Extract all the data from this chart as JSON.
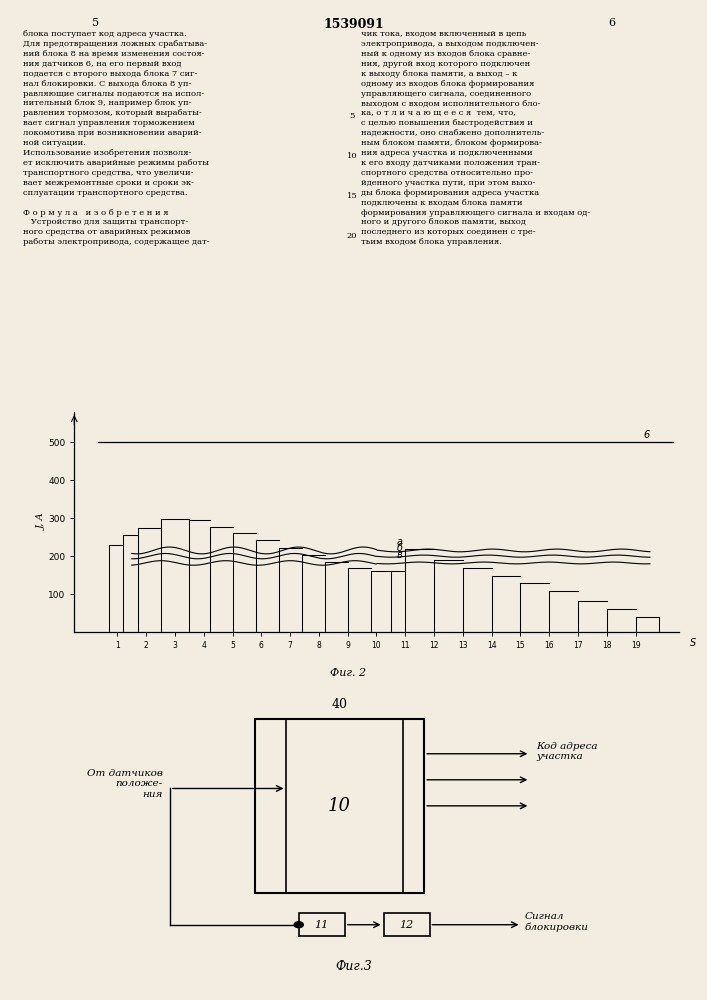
{
  "page_bg": "#f2ede0",
  "title_text": "1539091",
  "page_num_left": "5",
  "page_num_right": "6",
  "col1_lines": [
    "блока поступает код адреса участка.",
    "Для предотвращения ложных срабатыва-",
    "ний блока 8 на время изменения состоя-",
    "ния датчиков 6, на его первый вход",
    "подается с второго выхода блока 7 сиг-",
    "нал блокировки. С выхода блока 8 уп-",
    "равляющие сигналы подаются на испол-",
    "нительный блок 9, например блок уп-",
    "равления тормозом, который вырабаты-",
    "вает сигнал управления торможением",
    "локомотива при возникновении аварий-",
    "ной ситуации.",
    "Использование изобретения позволя-",
    "ет исключить аварийные режимы работы",
    "транспортного средства, что увеличи-",
    "вает межремонтные сроки и сроки эк-",
    "сплуатации транспортного средства.",
    "",
    "Ф о р м у л а   и з о б р е т е н и я",
    "   Устройство для защиты транспорт-",
    "ного средства от аварийных режимов",
    "работы электропривода, содержащее дат-"
  ],
  "col2_lines": [
    "чик тока, входом включенный в цепь",
    "электропривода, а выходом подключен-",
    "ный к одному из входов блока сравне-",
    "ния, другой вход которого подключен",
    "к выходу блока памяти, а выход – к",
    "одному из входов блока формирования",
    "управляющего сигнала, соединенного",
    "выходом с входом исполнительного бло-",
    "ка, о т л и ч а ю щ е е с я  тем, что,",
    "с целью повышения быстродействия и",
    "надежности, оно снабжено дополнитель-",
    "ным блоком памяти, блоком формирова-",
    "ния адреса участка и подключенными",
    "к его входу датчиками положения тран-",
    "спортного средства относительно про-",
    "йденного участка пути, при этом выхо-",
    "ды блока формирования адреса участка",
    "подключены к входам блока памяти",
    "формирования управляющего сигнала и входам од-",
    "ного и другого блоков памяти, выход",
    "последнего из которых соединен с тре-",
    "тьим входом блока управления."
  ],
  "line_nums": [
    [
      5,
      0.888
    ],
    [
      10,
      0.848
    ],
    [
      15,
      0.808
    ],
    [
      20,
      0.768
    ]
  ],
  "fig2_label": "Фиг. 2",
  "fig3_label": "Фиг.3"
}
